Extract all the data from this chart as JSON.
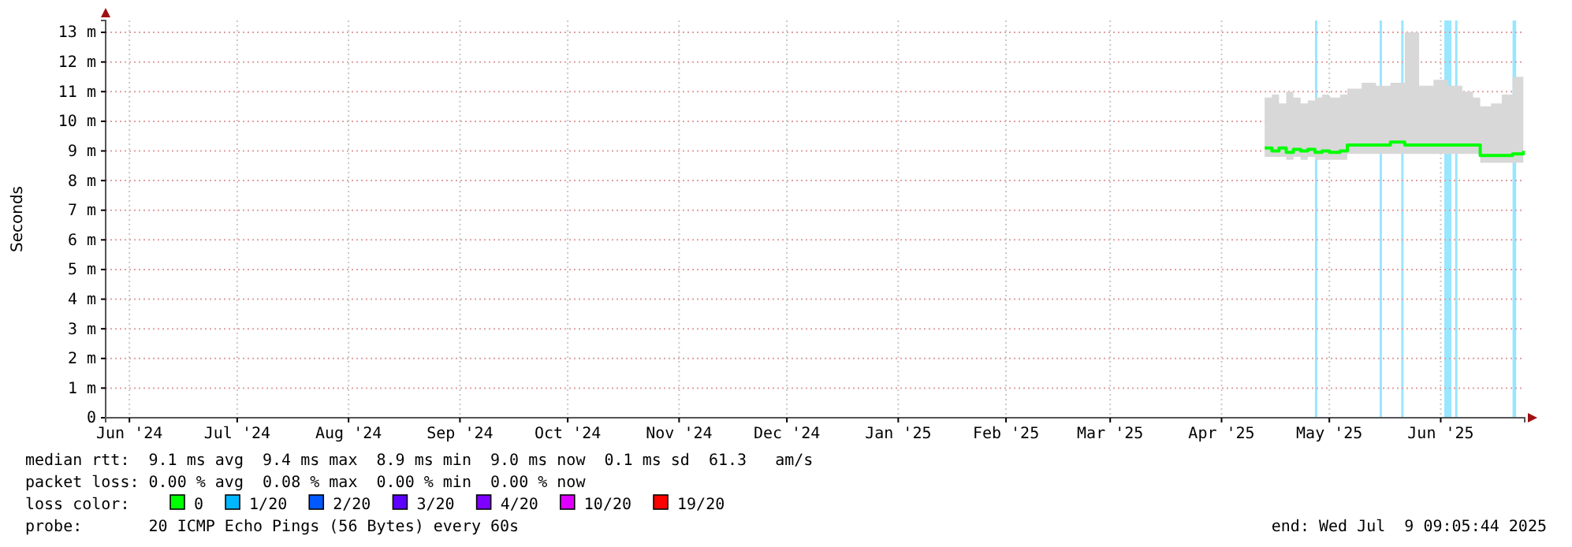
{
  "chart_data": {
    "type": "line",
    "ylabel": "Seconds",
    "legend_title": "loss color:",
    "legend": "bottom",
    "grid": true,
    "xlim": [
      "2024-06-09T09:05",
      "2025-07-09T09:05"
    ],
    "xticks": [
      {
        "value": "2024-06-16",
        "label": "Jun '24"
      },
      {
        "value": "2024-07-16",
        "label": "Jul '24"
      },
      {
        "value": "2024-08-16",
        "label": "Aug '24"
      },
      {
        "value": "2024-09-16",
        "label": "Sep '24"
      },
      {
        "value": "2024-10-16",
        "label": "Oct '24"
      },
      {
        "value": "2024-11-16",
        "label": "Nov '24"
      },
      {
        "value": "2024-12-16",
        "label": "Dec '24"
      },
      {
        "value": "2025-01-16",
        "label": "Jan '25"
      },
      {
        "value": "2025-02-15",
        "label": "Feb '25"
      },
      {
        "value": "2025-03-16",
        "label": "Mar '25"
      },
      {
        "value": "2025-04-16",
        "label": "Apr '25"
      },
      {
        "value": "2025-05-16",
        "label": "May '25"
      },
      {
        "value": "2025-06-16",
        "label": "Jun '25"
      }
    ],
    "ylim": [
      0,
      13.4
    ],
    "yticks": [
      0,
      {
        "value": 1,
        "label": "1 m"
      },
      {
        "value": 2,
        "label": "2 m"
      },
      {
        "value": 3,
        "label": "3 m"
      },
      {
        "value": 4,
        "label": "4 m"
      },
      {
        "value": 5,
        "label": "5 m"
      },
      {
        "value": 6,
        "label": "6 m"
      },
      {
        "value": 7,
        "label": "7 m"
      },
      {
        "value": 8,
        "label": "8 m"
      },
      {
        "value": 9,
        "label": "9 m"
      },
      {
        "value": 10,
        "label": "10 m"
      },
      {
        "value": 11,
        "label": "11 m"
      },
      {
        "value": 12,
        "label": "12 m"
      },
      {
        "value": 13,
        "label": "13 m"
      }
    ],
    "bands": [
      {
        "axis": "x",
        "from": "2025-05-12",
        "to": "2025-05-12T12:00",
        "color": "#99e6ff"
      },
      {
        "axis": "x",
        "from": "2025-05-30",
        "to": "2025-05-30T12:00",
        "color": "#99e6ff"
      },
      {
        "axis": "x",
        "from": "2025-06-05",
        "to": "2025-06-05T12:00",
        "color": "#99e6ff"
      },
      {
        "axis": "x",
        "from": "2025-06-17",
        "to": "2025-06-19",
        "color": "#99e6ff"
      },
      {
        "axis": "x",
        "from": "2025-06-20",
        "to": "2025-06-20T12:00",
        "color": "#99e6ff"
      },
      {
        "axis": "x",
        "from": "2025-07-06",
        "to": "2025-07-07",
        "color": "#99e6ff"
      }
    ],
    "x": [
      "2025-04-28",
      "2025-04-30",
      "2025-05-02",
      "2025-05-04",
      "2025-05-06",
      "2025-05-08",
      "2025-05-10",
      "2025-05-12",
      "2025-05-14",
      "2025-05-16",
      "2025-05-19",
      "2025-05-21",
      "2025-05-25",
      "2025-05-29",
      "2025-06-02",
      "2025-06-06",
      "2025-06-10",
      "2025-06-14",
      "2025-06-18",
      "2025-06-22",
      "2025-06-25",
      "2025-06-27",
      "2025-06-30",
      "2025-07-03",
      "2025-07-06",
      "2025-07-09"
    ],
    "series": [
      {
        "name": "0",
        "color": "#00ff00",
        "values": [
          9.1,
          9.0,
          9.1,
          8.95,
          9.05,
          9.0,
          9.05,
          8.95,
          9.0,
          8.95,
          9.0,
          9.2,
          9.2,
          9.2,
          9.3,
          9.2,
          9.2,
          9.2,
          9.2,
          9.2,
          9.2,
          8.85,
          8.85,
          8.85,
          8.9,
          9.0
        ],
        "lower": [
          8.8,
          8.8,
          8.8,
          8.7,
          8.8,
          8.7,
          8.8,
          8.7,
          8.7,
          8.7,
          8.7,
          8.9,
          8.9,
          8.9,
          8.9,
          8.9,
          8.9,
          8.9,
          8.9,
          8.9,
          8.9,
          8.6,
          8.6,
          8.6,
          8.6,
          8.7
        ],
        "upper": [
          10.8,
          10.9,
          10.6,
          11.0,
          10.8,
          10.6,
          10.7,
          10.8,
          10.9,
          10.8,
          10.9,
          11.1,
          11.3,
          11.2,
          11.3,
          13.0,
          11.2,
          11.4,
          11.2,
          11.0,
          10.8,
          10.5,
          10.6,
          10.9,
          11.5,
          12.1
        ]
      },
      {
        "name": "1/20",
        "color": "#00b8ff",
        "values": [
          null,
          null,
          null,
          null,
          null,
          null,
          null,
          null,
          null,
          null,
          null,
          null,
          null,
          null,
          null,
          null,
          null,
          null,
          null,
          null,
          null,
          null,
          null,
          null,
          null,
          null
        ]
      },
      {
        "name": "2/20",
        "color": "#0059ff",
        "values": [
          null,
          null,
          null,
          null,
          null,
          null,
          null,
          null,
          null,
          null,
          null,
          null,
          null,
          null,
          null,
          null,
          null,
          null,
          null,
          null,
          null,
          null,
          null,
          null,
          null,
          null
        ]
      },
      {
        "name": "3/20",
        "color": "#5e00ff",
        "values": [
          null,
          null,
          null,
          null,
          null,
          null,
          null,
          null,
          null,
          null,
          null,
          null,
          null,
          null,
          null,
          null,
          null,
          null,
          null,
          null,
          null,
          null,
          null,
          null,
          null,
          null
        ]
      },
      {
        "name": "4/20",
        "color": "#7e00ff",
        "values": [
          null,
          null,
          null,
          null,
          null,
          null,
          null,
          null,
          null,
          null,
          null,
          null,
          null,
          null,
          null,
          null,
          null,
          null,
          null,
          null,
          null,
          null,
          null,
          null,
          null,
          null
        ]
      },
      {
        "name": "10/20",
        "color": "#dd00ff",
        "values": [
          null,
          null,
          null,
          null,
          null,
          null,
          null,
          null,
          null,
          null,
          null,
          null,
          null,
          null,
          null,
          null,
          null,
          null,
          null,
          null,
          null,
          null,
          null,
          null,
          null,
          null
        ]
      },
      {
        "name": "19/20",
        "color": "#ff0000",
        "values": [
          null,
          null,
          null,
          null,
          null,
          null,
          null,
          null,
          null,
          null,
          null,
          null,
          null,
          null,
          null,
          null,
          null,
          null,
          null,
          null,
          null,
          null,
          null,
          null,
          null,
          null
        ]
      }
    ],
    "annotations": [
      "median rtt:  9.1 ms avg  9.4 ms max  8.9 ms min  9.0 ms now  0.1 ms sd  61.3   am/s",
      "packet loss: 0.00 % avg  0.08 % max  0.00 % min  0.00 % now",
      "probe:       20 ICMP Echo Pings (56 Bytes) every 60s",
      "end: Wed Jul  9 09:05:44 2025"
    ]
  }
}
